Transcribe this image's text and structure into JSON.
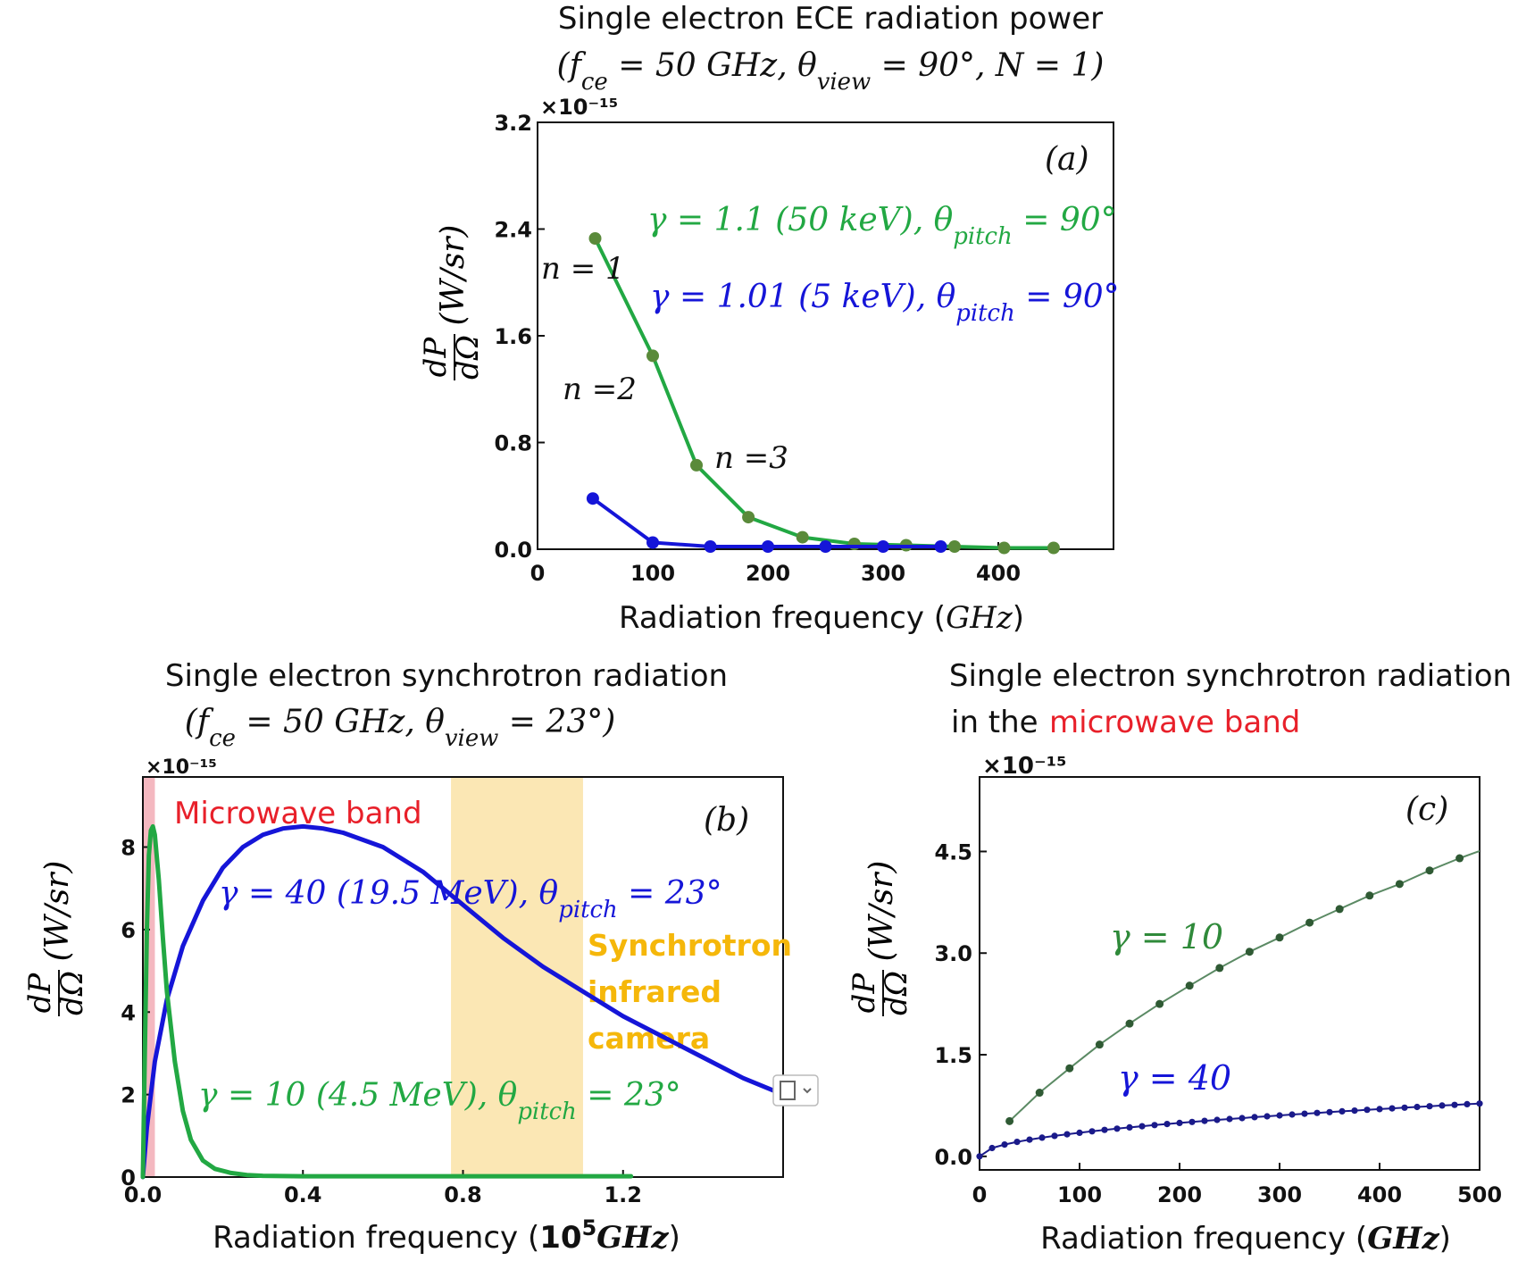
{
  "colors": {
    "green_line": "#22a843",
    "green_marker": "#5a8a3a",
    "blue": "#1515d8",
    "dark_blue_marker": "#1a1a8a",
    "gamma10_line": "#5b8a64",
    "microwave_band": "#f4b8c0",
    "infrared_band": "#fbe7b4",
    "microwave_text": "#e8202a",
    "infrared_text": "#f5b70a"
  },
  "chart_data": [
    {
      "id": "a",
      "type": "line",
      "title_line1": "Single electron ECE radiation power",
      "title_line2": "(f_ce = 50 GHz, θ_view = 90°, N = 1)",
      "panel_label": "(a)",
      "xlabel": "Radiation frequency (GHz)",
      "ylabel": "dP/dΩ (W/sr)",
      "y_multiplier": "×10⁻¹⁵",
      "xlim": [
        0,
        500
      ],
      "ylim": [
        0,
        3.2
      ],
      "xticks": [
        0,
        100,
        200,
        300,
        400
      ],
      "yticks": [
        0.0,
        0.8,
        1.6,
        2.4,
        3.2
      ],
      "ytick_labels": [
        "0.0",
        "0.8",
        "1.6",
        "2.4",
        "3.2"
      ],
      "series": [
        {
          "name": "γ = 1.1 (50 keV), θ_pitch = 90°",
          "x": [
            50,
            100,
            138,
            183,
            230,
            275,
            320,
            362,
            405,
            448
          ],
          "y": [
            2.33,
            1.45,
            0.63,
            0.24,
            0.09,
            0.04,
            0.03,
            0.02,
            0.01,
            0.01
          ]
        },
        {
          "name": "γ = 1.01 (5 keV), θ_pitch = 90°",
          "x": [
            48,
            100,
            150,
            200,
            250,
            300,
            350
          ],
          "y": [
            0.38,
            0.05,
            0.02,
            0.02,
            0.02,
            0.02,
            0.02
          ]
        }
      ],
      "annotations": [
        "n = 1",
        "n =2",
        "n =3"
      ]
    },
    {
      "id": "b",
      "type": "line",
      "title_line1": "Single electron synchrotron radiation",
      "title_line2": "(f_ce = 50 GHz, θ_view = 23°)",
      "panel_label": "(b)",
      "xlabel": "Radiation frequency (10⁵GHz)",
      "ylabel": "dP/dΩ (W/sr)",
      "y_multiplier": "×10⁻¹⁵",
      "xlim": [
        0,
        1.6
      ],
      "ylim": [
        0,
        9.7
      ],
      "xticks": [
        0.0,
        0.4,
        0.8,
        1.2
      ],
      "xtick_labels": [
        "0.0",
        "0.4",
        "0.8",
        "1.2"
      ],
      "yticks": [
        0,
        2,
        4,
        6,
        8
      ],
      "bands": [
        {
          "label": "Microwave band",
          "x0": 0.0,
          "x1": 0.03
        },
        {
          "label": "Synchrotron infrared camera",
          "x0": 0.77,
          "x1": 1.1
        }
      ],
      "band_text": {
        "microwave": "Microwave band",
        "ir_line1": "Synchrotron",
        "ir_line2": "infrared",
        "ir_line3": "camera"
      },
      "series": [
        {
          "name": "γ = 40 (19.5 MeV), θ_pitch = 23°",
          "x": [
            0.0,
            0.01,
            0.03,
            0.06,
            0.1,
            0.15,
            0.2,
            0.25,
            0.3,
            0.35,
            0.4,
            0.45,
            0.5,
            0.6,
            0.7,
            0.8,
            0.9,
            1.0,
            1.1,
            1.2,
            1.3,
            1.4,
            1.5,
            1.6
          ],
          "y": [
            0.0,
            1.2,
            2.8,
            4.3,
            5.6,
            6.7,
            7.5,
            8.0,
            8.3,
            8.45,
            8.5,
            8.45,
            8.35,
            8.0,
            7.4,
            6.6,
            5.8,
            5.1,
            4.5,
            3.9,
            3.4,
            2.9,
            2.4,
            2.0
          ]
        },
        {
          "name": "γ = 10 (4.5 MeV), θ_pitch = 23°",
          "x": [
            0.0,
            0.005,
            0.01,
            0.015,
            0.02,
            0.025,
            0.03,
            0.04,
            0.05,
            0.06,
            0.08,
            0.1,
            0.12,
            0.15,
            0.18,
            0.22,
            0.26,
            0.3,
            0.4,
            0.6,
            0.8,
            1.0,
            1.22
          ],
          "y": [
            0.0,
            3.0,
            6.0,
            7.8,
            8.4,
            8.5,
            8.3,
            7.2,
            5.8,
            4.5,
            2.8,
            1.6,
            0.9,
            0.4,
            0.2,
            0.1,
            0.05,
            0.03,
            0.02,
            0.02,
            0.02,
            0.02,
            0.02
          ]
        }
      ]
    },
    {
      "id": "c",
      "type": "line",
      "title_line1": "Single electron synchrotron radiation",
      "title_line2_prefix": "in the",
      "title_line2_highlight": "microwave band",
      "panel_label": "(c)",
      "xlabel": "Radiation frequency (GHz)",
      "ylabel": "dP/dΩ (W/sr)",
      "y_multiplier": "×10⁻¹⁵",
      "xlim": [
        0,
        500
      ],
      "ylim": [
        -0.2,
        5.6
      ],
      "xticks": [
        0,
        100,
        200,
        300,
        400,
        500
      ],
      "yticks": [
        0.0,
        1.5,
        3.0,
        4.5
      ],
      "ytick_labels": [
        "0.0",
        "1.5",
        "3.0",
        "4.5"
      ],
      "series": [
        {
          "name": "γ = 10",
          "x": [
            30,
            60,
            90,
            120,
            150,
            180,
            210,
            240,
            270,
            300,
            330,
            360,
            390,
            420,
            450,
            480,
            510
          ],
          "y": [
            0.52,
            0.94,
            1.3,
            1.65,
            1.96,
            2.25,
            2.52,
            2.78,
            3.02,
            3.23,
            3.45,
            3.65,
            3.85,
            4.02,
            4.22,
            4.4,
            4.56
          ]
        },
        {
          "name": "γ = 40",
          "x_start": 0,
          "x_end": 500,
          "x_step": 12.5,
          "formula": "0.78 * sqrt(x/500)"
        }
      ]
    }
  ]
}
